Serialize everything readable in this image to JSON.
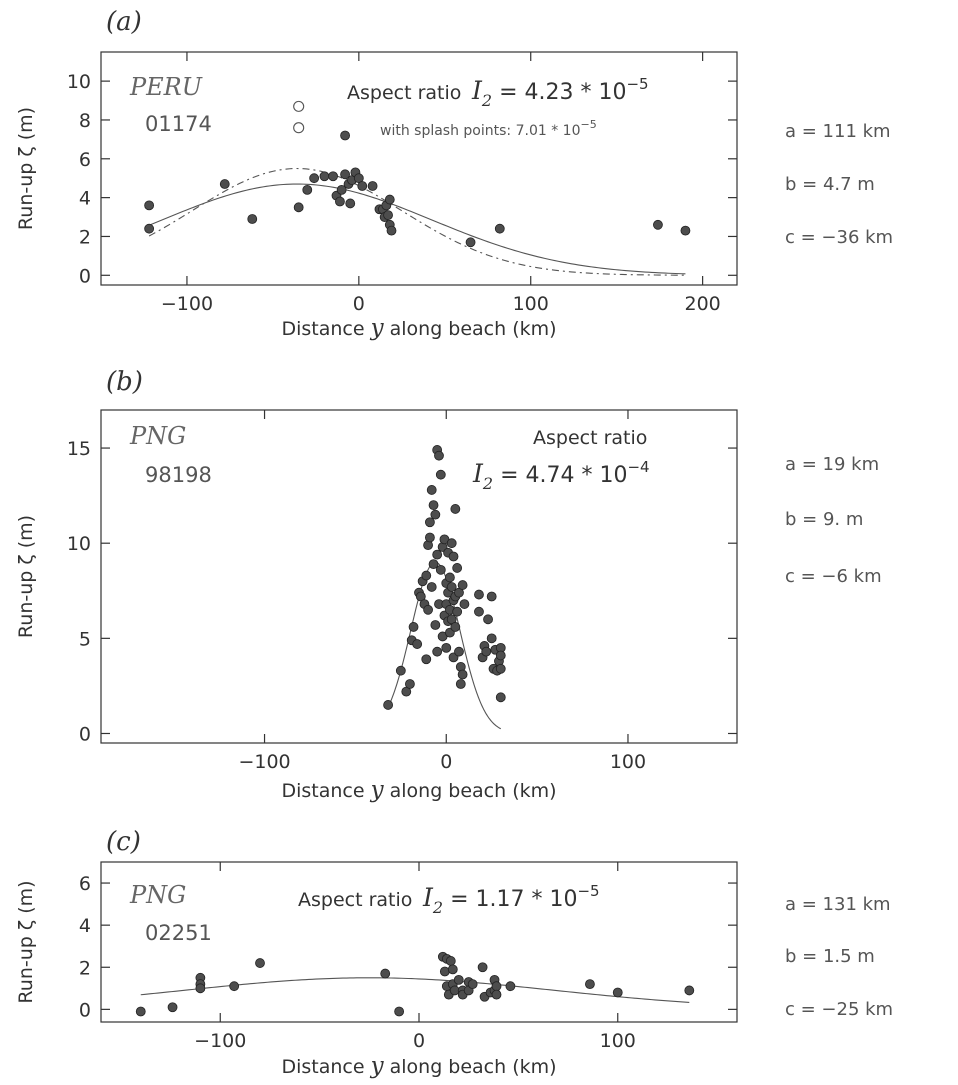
{
  "chart_data": [
    {
      "type": "scatter",
      "panel_label": "(a)",
      "region": "PERU",
      "event_id": "01174",
      "aspect_text": "Aspect ratio",
      "aspect_symbol": "I",
      "aspect_sub": "2",
      "aspect_value": "= 4.23 * 10",
      "aspect_exp": "−5",
      "splash_text": "with splash points: 7.01 * 10",
      "splash_exp": "−5",
      "params": {
        "a": "a = 111 km",
        "b": "b = 4.7 m",
        "c": "c = −36 km"
      },
      "xlabel_pre": "Distance ",
      "xlabel_var": "y",
      "xlabel_post": " along beach  (km)",
      "ylabel": "Run-up ζ (m)",
      "xlim": [
        -150,
        220
      ],
      "ylim": [
        -0.5,
        11.5
      ],
      "xticks": [
        -100,
        0,
        100,
        200
      ],
      "yticks": [
        0,
        2,
        4,
        6,
        8,
        10
      ],
      "points": [
        [
          -122,
          3.6
        ],
        [
          -122,
          2.4
        ],
        [
          -78,
          4.7
        ],
        [
          -62,
          2.9
        ],
        [
          -35,
          3.5
        ],
        [
          -30,
          4.4
        ],
        [
          -26,
          5.0
        ],
        [
          -20,
          5.1
        ],
        [
          -15,
          5.1
        ],
        [
          -13,
          4.1
        ],
        [
          -11,
          3.8
        ],
        [
          -10,
          4.4
        ],
        [
          -8,
          5.2
        ],
        [
          -6,
          4.7
        ],
        [
          -5,
          3.7
        ],
        [
          -4,
          4.9
        ],
        [
          -2,
          5.3
        ],
        [
          0,
          5.0
        ],
        [
          2,
          4.6
        ],
        [
          -8,
          7.2
        ],
        [
          8,
          4.6
        ],
        [
          12,
          3.4
        ],
        [
          14,
          3.4
        ],
        [
          15,
          3.0
        ],
        [
          16,
          3.6
        ],
        [
          17,
          3.1
        ],
        [
          18,
          3.9
        ],
        [
          18,
          2.6
        ],
        [
          19,
          2.3
        ],
        [
          65,
          1.7
        ],
        [
          82,
          2.4
        ],
        [
          174,
          2.6
        ],
        [
          190,
          2.3
        ]
      ],
      "open_points": [
        [
          -35,
          8.7
        ],
        [
          -35,
          7.6
        ]
      ],
      "fit_solid": {
        "a": 111,
        "b": 4.7,
        "c": -36
      },
      "fit_dashed": {
        "a": 86,
        "b": 5.5,
        "c": -36
      },
      "fit_range": [
        -122,
        190
      ]
    },
    {
      "type": "scatter",
      "panel_label": "(b)",
      "region": "PNG",
      "event_id": "98198",
      "aspect_text": "Aspect ratio",
      "aspect_symbol": "I",
      "aspect_sub": "2",
      "aspect_value": "= 4.74 * 10",
      "aspect_exp": "−4",
      "params": {
        "a": "a = 19 km",
        "b": "b = 9. m",
        "c": "c = −6 km"
      },
      "xlabel_pre": "Distance ",
      "xlabel_var": "y",
      "xlabel_post": " along beach  (km)",
      "ylabel": "Run-up ζ (m)",
      "xlim": [
        -190,
        160
      ],
      "ylim": [
        -0.5,
        17
      ],
      "xticks": [
        -100,
        0,
        100
      ],
      "yticks": [
        0,
        5,
        10,
        15
      ],
      "points": [
        [
          -32,
          1.5
        ],
        [
          -25,
          3.3
        ],
        [
          -22,
          2.2
        ],
        [
          -20,
          2.6
        ],
        [
          -19,
          4.9
        ],
        [
          -18,
          5.6
        ],
        [
          -16,
          4.7
        ],
        [
          -15,
          7.4
        ],
        [
          -14,
          7.2
        ],
        [
          -13,
          8.0
        ],
        [
          -12,
          6.8
        ],
        [
          -11,
          3.9
        ],
        [
          -11,
          8.3
        ],
        [
          -10,
          6.5
        ],
        [
          -10,
          9.9
        ],
        [
          -9,
          10.3
        ],
        [
          -9,
          11.1
        ],
        [
          -8,
          12.8
        ],
        [
          -8,
          7.7
        ],
        [
          -7,
          8.9
        ],
        [
          -7,
          12.0
        ],
        [
          -6,
          11.5
        ],
        [
          -6,
          5.7
        ],
        [
          -5,
          9.4
        ],
        [
          -5,
          4.3
        ],
        [
          -5,
          14.9
        ],
        [
          -4,
          14.6
        ],
        [
          -4,
          6.8
        ],
        [
          -3,
          13.6
        ],
        [
          -3,
          8.6
        ],
        [
          -2,
          9.8
        ],
        [
          -2,
          5.1
        ],
        [
          -1,
          10.2
        ],
        [
          -1,
          6.2
        ],
        [
          0,
          7.9
        ],
        [
          0,
          6.8
        ],
        [
          0,
          4.5
        ],
        [
          1,
          9.5
        ],
        [
          1,
          7.4
        ],
        [
          1,
          5.9
        ],
        [
          2,
          8.2
        ],
        [
          2,
          6.5
        ],
        [
          2,
          5.3
        ],
        [
          3,
          10.0
        ],
        [
          3,
          7.7
        ],
        [
          3,
          6.0
        ],
        [
          4,
          9.3
        ],
        [
          4,
          7.0
        ],
        [
          4,
          4.0
        ],
        [
          5,
          11.8
        ],
        [
          5,
          7.2
        ],
        [
          5,
          5.6
        ],
        [
          6,
          8.7
        ],
        [
          6,
          6.4
        ],
        [
          7,
          7.4
        ],
        [
          7,
          4.3
        ],
        [
          8,
          3.5
        ],
        [
          8,
          2.6
        ],
        [
          9,
          7.8
        ],
        [
          9,
          3.1
        ],
        [
          10,
          6.8
        ],
        [
          18,
          7.3
        ],
        [
          18,
          6.4
        ],
        [
          20,
          4.0
        ],
        [
          21,
          4.6
        ],
        [
          22,
          4.3
        ],
        [
          23,
          6.0
        ],
        [
          25,
          7.2
        ],
        [
          25,
          5.0
        ],
        [
          26,
          3.4
        ],
        [
          27,
          4.4
        ],
        [
          28,
          3.3
        ],
        [
          29,
          3.8
        ],
        [
          30,
          4.5
        ],
        [
          30,
          4.1
        ],
        [
          30,
          3.4
        ],
        [
          30,
          1.9
        ]
      ],
      "open_points": [],
      "fit_solid": {
        "a": 19,
        "b": 9.0,
        "c": -6
      },
      "fit_range": [
        -32,
        30
      ]
    },
    {
      "type": "scatter",
      "panel_label": "(c)",
      "region": "PNG",
      "event_id": "02251",
      "aspect_text": "Aspect ratio",
      "aspect_symbol": "I",
      "aspect_sub": "2",
      "aspect_value": "= 1.17 * 10",
      "aspect_exp": "−5",
      "params": {
        "a": "a = 131 km",
        "b": "b = 1.5 m",
        "c": "c = −25 km"
      },
      "xlabel_pre": "Distance ",
      "xlabel_var": "y",
      "xlabel_post": " along beach  (km)",
      "ylabel": "Run-up ζ (m)",
      "xlim": [
        -160,
        160
      ],
      "ylim": [
        -0.6,
        7
      ],
      "xticks": [
        -100,
        0,
        100
      ],
      "yticks": [
        0,
        2,
        4,
        6
      ],
      "points": [
        [
          -140,
          -0.1
        ],
        [
          -124,
          0.1
        ],
        [
          -110,
          1.5
        ],
        [
          -110,
          1.2
        ],
        [
          -110,
          1.0
        ],
        [
          -93,
          1.1
        ],
        [
          -80,
          2.2
        ],
        [
          -17,
          1.7
        ],
        [
          -10,
          -0.1
        ],
        [
          12,
          2.5
        ],
        [
          13,
          1.8
        ],
        [
          14,
          2.4
        ],
        [
          14,
          1.1
        ],
        [
          15,
          0.7
        ],
        [
          16,
          2.3
        ],
        [
          17,
          1.9
        ],
        [
          17,
          1.2
        ],
        [
          18,
          0.9
        ],
        [
          20,
          1.4
        ],
        [
          22,
          0.9
        ],
        [
          22,
          0.7
        ],
        [
          25,
          1.3
        ],
        [
          25,
          0.9
        ],
        [
          27,
          1.2
        ],
        [
          32,
          2.0
        ],
        [
          33,
          0.6
        ],
        [
          36,
          0.8
        ],
        [
          38,
          1.4
        ],
        [
          38,
          0.9
        ],
        [
          39,
          1.1
        ],
        [
          39,
          0.7
        ],
        [
          46,
          1.1
        ],
        [
          86,
          1.2
        ],
        [
          100,
          0.8
        ],
        [
          136,
          0.9
        ]
      ],
      "open_points": [],
      "fit_solid": {
        "a": 131,
        "b": 1.5,
        "c": -25
      },
      "fit_range": [
        -140,
        136
      ]
    }
  ]
}
